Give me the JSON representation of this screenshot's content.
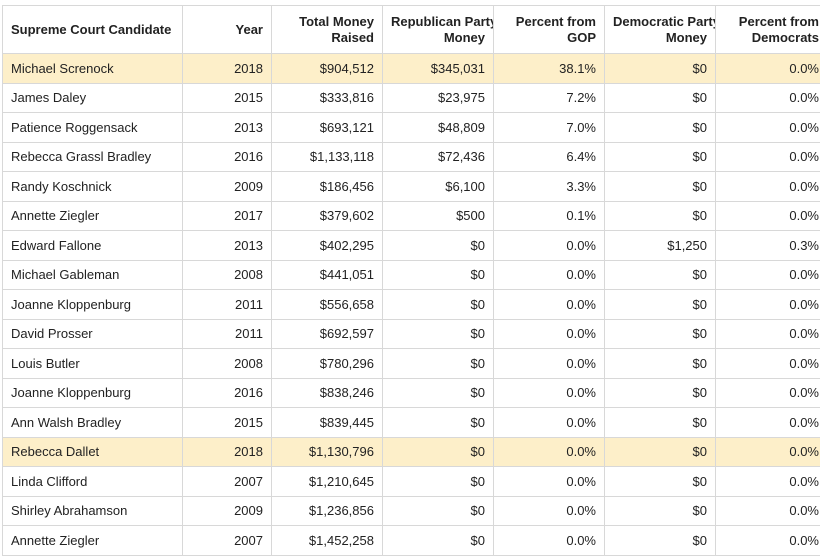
{
  "columns": [
    "Supreme Court Candidate",
    "Year",
    "Total Money Raised",
    "Republican Party Money",
    "Percent from GOP",
    "Democratic Party Money",
    "Percent from Democrats"
  ],
  "highlight_color": "#fdefc9",
  "rows": [
    {
      "candidate": "Michael Screnock",
      "year": "2018",
      "total": "$904,512",
      "rep": "$345,031",
      "pct_gop": "38.1%",
      "dem": "$0",
      "pct_dem": "0.0%",
      "highlighted": true
    },
    {
      "candidate": "James Daley",
      "year": "2015",
      "total": "$333,816",
      "rep": "$23,975",
      "pct_gop": "7.2%",
      "dem": "$0",
      "pct_dem": "0.0%",
      "highlighted": false
    },
    {
      "candidate": "Patience Roggensack",
      "year": "2013",
      "total": "$693,121",
      "rep": "$48,809",
      "pct_gop": "7.0%",
      "dem": "$0",
      "pct_dem": "0.0%",
      "highlighted": false
    },
    {
      "candidate": "Rebecca Grassl Bradley",
      "year": "2016",
      "total": "$1,133,118",
      "rep": "$72,436",
      "pct_gop": "6.4%",
      "dem": "$0",
      "pct_dem": "0.0%",
      "highlighted": false
    },
    {
      "candidate": "Randy Koschnick",
      "year": "2009",
      "total": "$186,456",
      "rep": "$6,100",
      "pct_gop": "3.3%",
      "dem": "$0",
      "pct_dem": "0.0%",
      "highlighted": false
    },
    {
      "candidate": "Annette Ziegler",
      "year": "2017",
      "total": "$379,602",
      "rep": "$500",
      "pct_gop": "0.1%",
      "dem": "$0",
      "pct_dem": "0.0%",
      "highlighted": false
    },
    {
      "candidate": "Edward Fallone",
      "year": "2013",
      "total": "$402,295",
      "rep": "$0",
      "pct_gop": "0.0%",
      "dem": "$1,250",
      "pct_dem": "0.3%",
      "highlighted": false
    },
    {
      "candidate": "Michael Gableman",
      "year": "2008",
      "total": "$441,051",
      "rep": "$0",
      "pct_gop": "0.0%",
      "dem": "$0",
      "pct_dem": "0.0%",
      "highlighted": false
    },
    {
      "candidate": "Joanne Kloppenburg",
      "year": "2011",
      "total": "$556,658",
      "rep": "$0",
      "pct_gop": "0.0%",
      "dem": "$0",
      "pct_dem": "0.0%",
      "highlighted": false
    },
    {
      "candidate": "David Prosser",
      "year": "2011",
      "total": "$692,597",
      "rep": "$0",
      "pct_gop": "0.0%",
      "dem": "$0",
      "pct_dem": "0.0%",
      "highlighted": false
    },
    {
      "candidate": "Louis Butler",
      "year": "2008",
      "total": "$780,296",
      "rep": "$0",
      "pct_gop": "0.0%",
      "dem": "$0",
      "pct_dem": "0.0%",
      "highlighted": false
    },
    {
      "candidate": "Joanne Kloppenburg",
      "year": "2016",
      "total": "$838,246",
      "rep": "$0",
      "pct_gop": "0.0%",
      "dem": "$0",
      "pct_dem": "0.0%",
      "highlighted": false
    },
    {
      "candidate": "Ann Walsh Bradley",
      "year": "2015",
      "total": "$839,445",
      "rep": "$0",
      "pct_gop": "0.0%",
      "dem": "$0",
      "pct_dem": "0.0%",
      "highlighted": false
    },
    {
      "candidate": "Rebecca Dallet",
      "year": "2018",
      "total": "$1,130,796",
      "rep": "$0",
      "pct_gop": "0.0%",
      "dem": "$0",
      "pct_dem": "0.0%",
      "highlighted": true
    },
    {
      "candidate": "Linda Clifford",
      "year": "2007",
      "total": "$1,210,645",
      "rep": "$0",
      "pct_gop": "0.0%",
      "dem": "$0",
      "pct_dem": "0.0%",
      "highlighted": false
    },
    {
      "candidate": "Shirley Abrahamson",
      "year": "2009",
      "total": "$1,236,856",
      "rep": "$0",
      "pct_gop": "0.0%",
      "dem": "$0",
      "pct_dem": "0.0%",
      "highlighted": false
    },
    {
      "candidate": "Annette Ziegler",
      "year": "2007",
      "total": "$1,452,258",
      "rep": "$0",
      "pct_gop": "0.0%",
      "dem": "$0",
      "pct_dem": "0.0%",
      "highlighted": false
    }
  ]
}
